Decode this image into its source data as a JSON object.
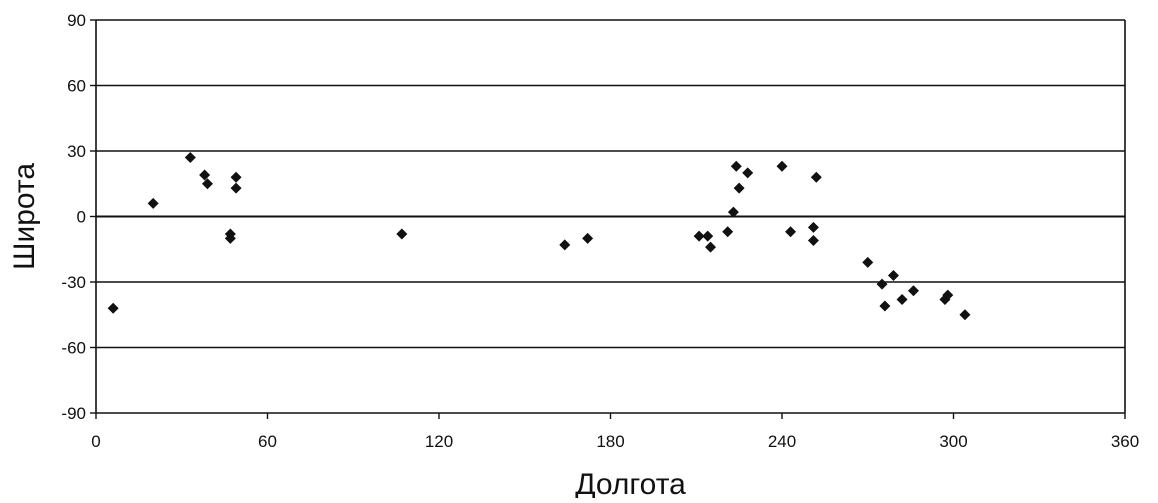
{
  "chart_data": {
    "type": "scatter",
    "title": "",
    "xlabel": "Долгота",
    "ylabel": "Широта",
    "xlim": [
      0,
      360
    ],
    "ylim": [
      -90,
      90
    ],
    "xticks": [
      0,
      60,
      120,
      180,
      240,
      300,
      360
    ],
    "yticks": [
      90,
      60,
      30,
      0,
      -30,
      -60,
      -90
    ],
    "x_tick_labels": [
      "0",
      "60",
      "120",
      "180",
      "240",
      "300",
      "360"
    ],
    "y_tick_labels": [
      "90",
      "60",
      "30",
      "0",
      "-30",
      "-60",
      "-90"
    ],
    "grid": "horizontal",
    "legend": "none",
    "marker": "diamond",
    "colors": {
      "points": "#111111",
      "gridlines": "#111111",
      "background": "#ffffff"
    },
    "points": [
      {
        "x": 6,
        "y": -42
      },
      {
        "x": 20,
        "y": 6
      },
      {
        "x": 33,
        "y": 27
      },
      {
        "x": 38,
        "y": 19
      },
      {
        "x": 39,
        "y": 15
      },
      {
        "x": 47,
        "y": -8
      },
      {
        "x": 47,
        "y": -10
      },
      {
        "x": 49,
        "y": 18
      },
      {
        "x": 49,
        "y": 13
      },
      {
        "x": 107,
        "y": -8
      },
      {
        "x": 164,
        "y": -13
      },
      {
        "x": 172,
        "y": -10
      },
      {
        "x": 211,
        "y": -9
      },
      {
        "x": 214,
        "y": -9
      },
      {
        "x": 215,
        "y": -14
      },
      {
        "x": 221,
        "y": -7
      },
      {
        "x": 223,
        "y": 2
      },
      {
        "x": 224,
        "y": 23
      },
      {
        "x": 225,
        "y": 13
      },
      {
        "x": 228,
        "y": 20
      },
      {
        "x": 240,
        "y": 23
      },
      {
        "x": 243,
        "y": -7
      },
      {
        "x": 251,
        "y": -5
      },
      {
        "x": 251,
        "y": -11
      },
      {
        "x": 252,
        "y": 18
      },
      {
        "x": 270,
        "y": -21
      },
      {
        "x": 275,
        "y": -31
      },
      {
        "x": 276,
        "y": -41
      },
      {
        "x": 279,
        "y": -27
      },
      {
        "x": 282,
        "y": -38
      },
      {
        "x": 286,
        "y": -34
      },
      {
        "x": 297,
        "y": -38
      },
      {
        "x": 298,
        "y": -36
      },
      {
        "x": 304,
        "y": -45
      }
    ]
  }
}
